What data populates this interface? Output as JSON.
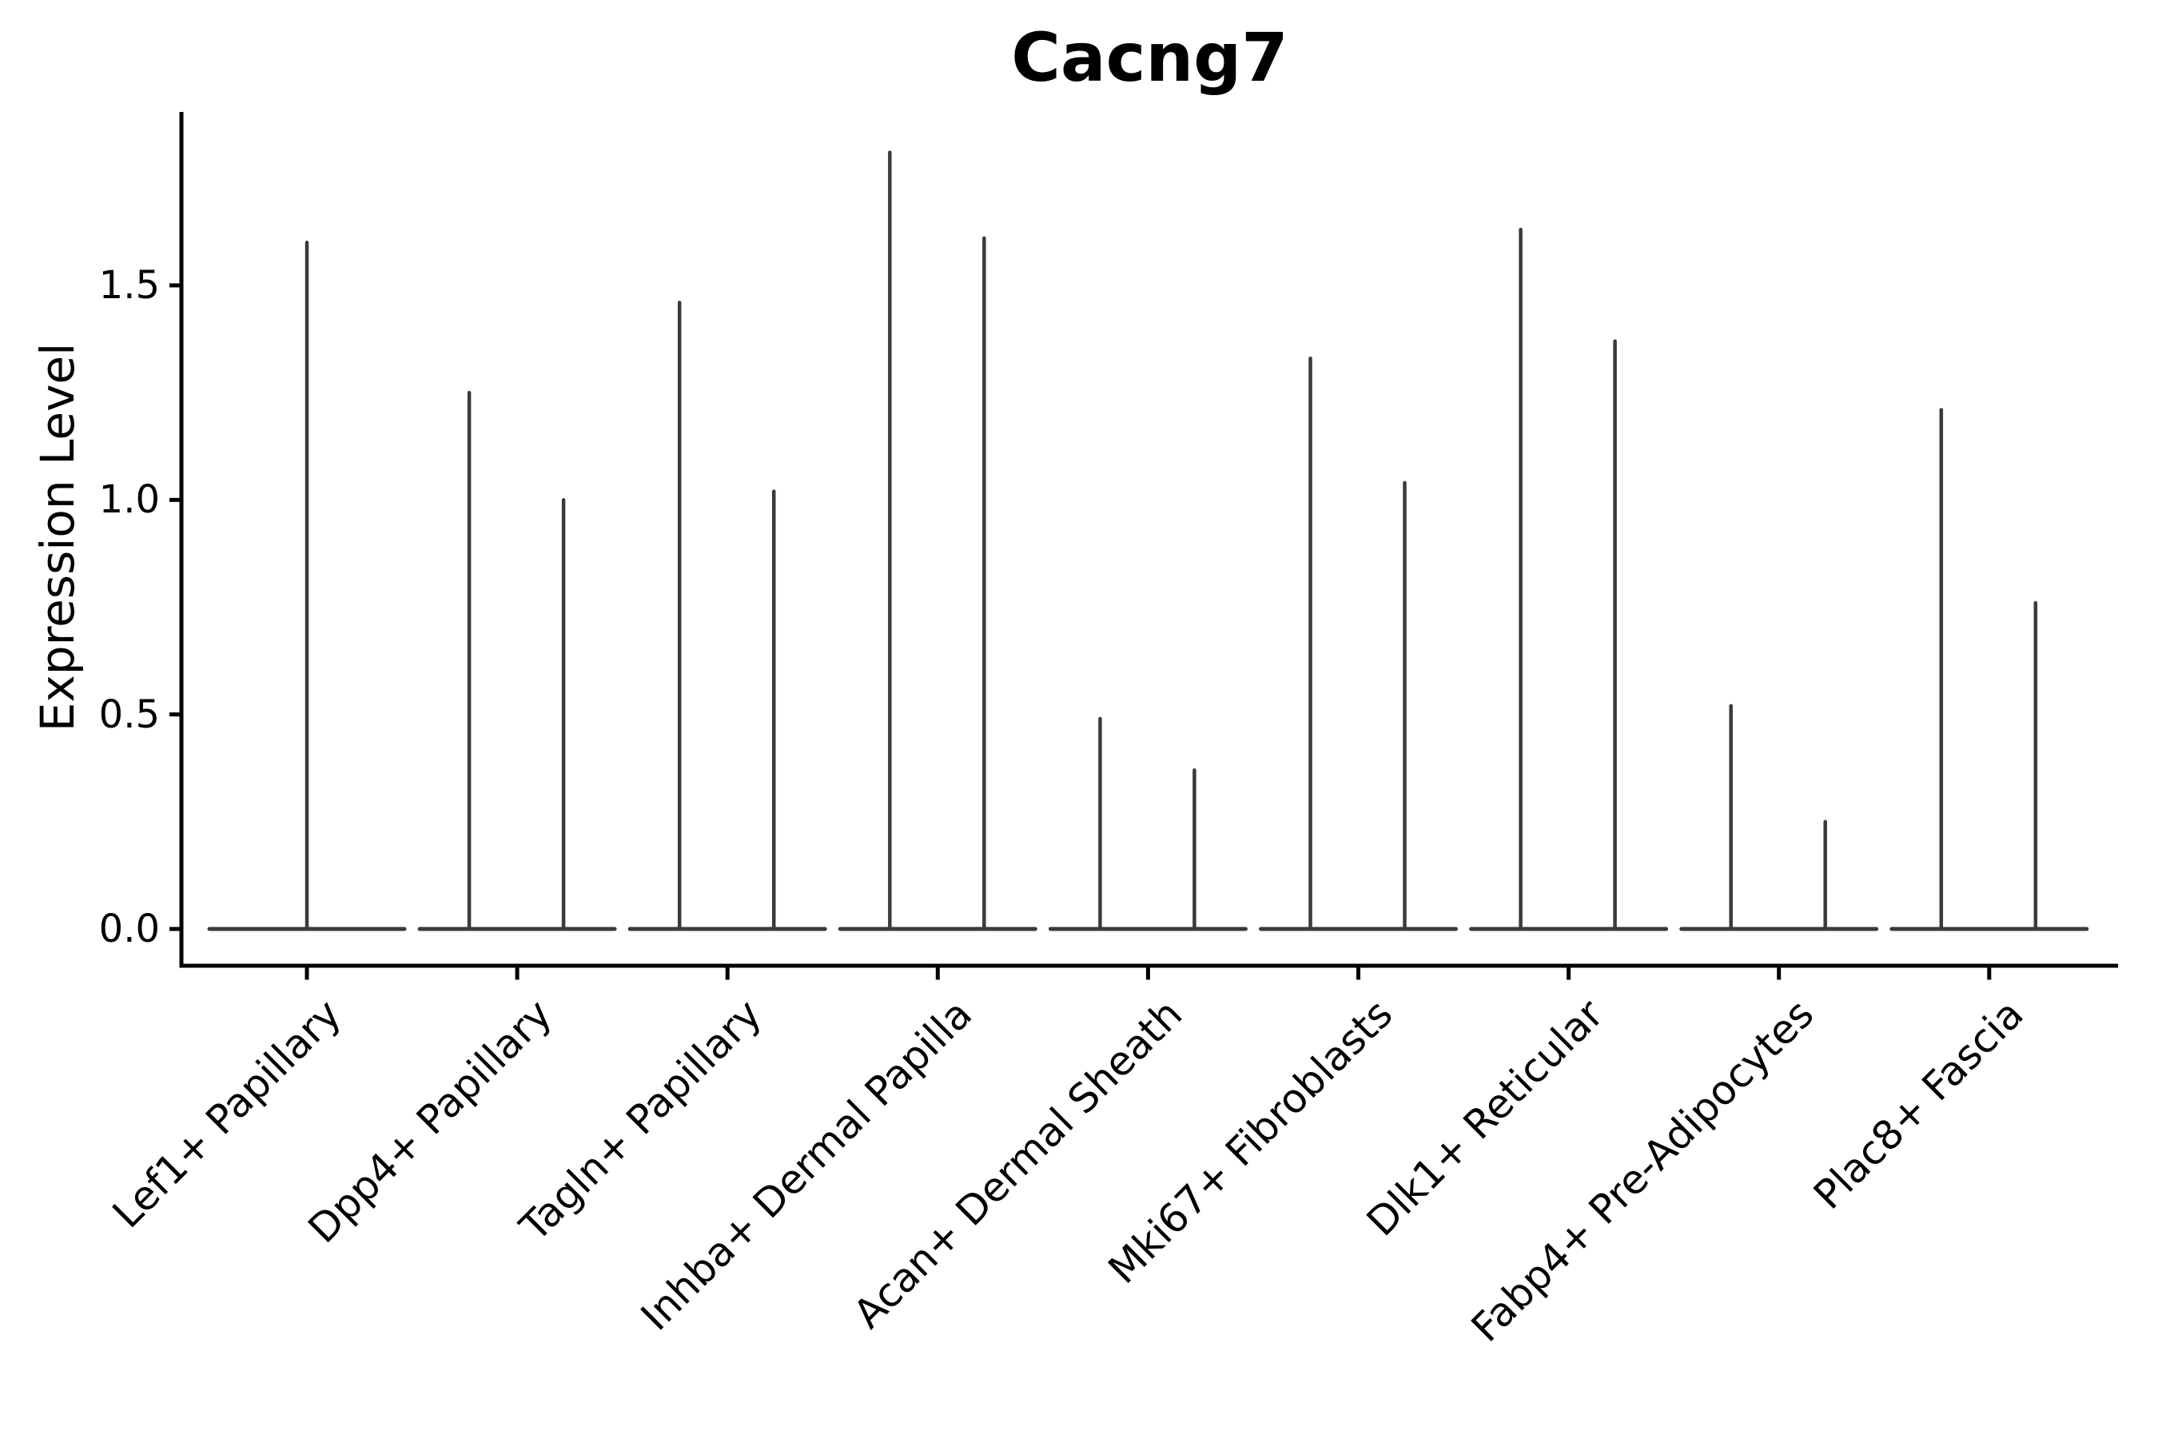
{
  "chart_data": {
    "type": "violin",
    "title": "Cacng7",
    "xlabel": "",
    "ylabel": "Expression Level",
    "background_color": "#ffffff",
    "violin_line_color": "#3a3a3a",
    "axis_color": "#000000",
    "legend": "none",
    "grid": false,
    "ylim": [
      -0.09,
      1.9
    ],
    "ytick_values": [
      0.0,
      0.5,
      1.0,
      1.5
    ],
    "ytick_labels": [
      "0.0",
      "0.5",
      "1.0",
      "1.5"
    ],
    "categories": [
      "Lef1+ Papillary",
      "Dpp4+ Papillary",
      "Tagln+ Papillary",
      "Inhba+ Dermal Papilla",
      "Acan+ Dermal Sheath",
      "Mki67+ Fibroblasts",
      "Dlk1+ Reticular",
      "Fabp4+ Pre-Adipocytes",
      "Plac8+ Fascia"
    ],
    "description": "Violin plot; expression concentrated at 0 (flat wide base per group) with thin spikes reaching the maximum expression of each violin. Categories 2-9 contain two violins (left/right), category 1 a single centered violin.",
    "violins": [
      {
        "category": "Lef1+ Papillary",
        "spike_maxima": [
          1.6
        ]
      },
      {
        "category": "Dpp4+ Papillary",
        "spike_maxima": [
          1.25,
          1.0
        ]
      },
      {
        "category": "Tagln+ Papillary",
        "spike_maxima": [
          1.46,
          1.02
        ]
      },
      {
        "category": "Inhba+ Dermal Papilla",
        "spike_maxima": [
          1.81,
          1.61
        ]
      },
      {
        "category": "Acan+ Dermal Sheath",
        "spike_maxima": [
          0.49,
          0.37
        ]
      },
      {
        "category": "Mki67+ Fibroblasts",
        "spike_maxima": [
          1.33,
          1.04
        ]
      },
      {
        "category": "Dlk1+ Reticular",
        "spike_maxima": [
          1.63,
          1.37
        ]
      },
      {
        "category": "Fabp4+ Pre-Adipocytes",
        "spike_maxima": [
          0.52,
          0.25
        ]
      },
      {
        "category": "Plac8+ Fascia",
        "spike_maxima": [
          1.21,
          0.76
        ]
      }
    ]
  }
}
